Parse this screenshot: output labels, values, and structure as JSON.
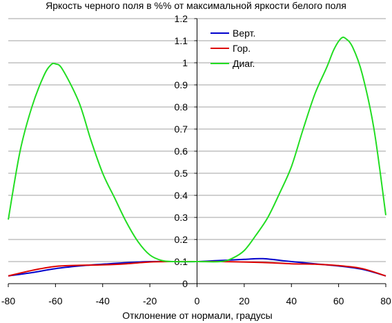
{
  "chart_data": {
    "type": "line",
    "title": "Яркость черного поля в %% от максимальной яркости белого поля",
    "xlabel": "Отклонение от нормали, градусы",
    "ylabel": "",
    "xlim": [
      -80,
      80
    ],
    "ylim": [
      0,
      1.2
    ],
    "x_ticks": [
      "-80",
      "-60",
      "-40",
      "-20",
      "0",
      "20",
      "40",
      "60",
      "80"
    ],
    "y_ticks": [
      "0",
      "0.1",
      "0.2",
      "0.3",
      "0.4",
      "0.5",
      "0.6",
      "0.7",
      "0.8",
      "0.9",
      "1",
      "1.1",
      "1.2"
    ],
    "grid": "horizontal",
    "legend_position": "top-center",
    "series": [
      {
        "name": "Верт.",
        "color": "#0000cc",
        "points": [
          [
            -80,
            0.035
          ],
          [
            -70,
            0.05
          ],
          [
            -60,
            0.068
          ],
          [
            -50,
            0.08
          ],
          [
            -40,
            0.088
          ],
          [
            -30,
            0.095
          ],
          [
            -20,
            0.1
          ],
          [
            -10,
            0.1
          ],
          [
            0,
            0.1
          ],
          [
            10,
            0.105
          ],
          [
            20,
            0.11
          ],
          [
            28,
            0.113
          ],
          [
            40,
            0.1
          ],
          [
            50,
            0.09
          ],
          [
            60,
            0.08
          ],
          [
            70,
            0.065
          ],
          [
            80,
            0.035
          ]
        ]
      },
      {
        "name": "Гор.",
        "color": "#dd0000",
        "points": [
          [
            -80,
            0.035
          ],
          [
            -70,
            0.06
          ],
          [
            -60,
            0.078
          ],
          [
            -50,
            0.083
          ],
          [
            -40,
            0.085
          ],
          [
            -30,
            0.09
          ],
          [
            -20,
            0.098
          ],
          [
            -10,
            0.1
          ],
          [
            0,
            0.1
          ],
          [
            10,
            0.1
          ],
          [
            20,
            0.098
          ],
          [
            30,
            0.095
          ],
          [
            40,
            0.09
          ],
          [
            50,
            0.088
          ],
          [
            60,
            0.082
          ],
          [
            70,
            0.068
          ],
          [
            80,
            0.035
          ]
        ]
      },
      {
        "name": "Диаг.",
        "color": "#22dd22",
        "points": [
          [
            -80,
            0.29
          ],
          [
            -75,
            0.6
          ],
          [
            -70,
            0.8
          ],
          [
            -65,
            0.94
          ],
          [
            -62,
            0.99
          ],
          [
            -60,
            0.995
          ],
          [
            -57,
            0.97
          ],
          [
            -50,
            0.82
          ],
          [
            -45,
            0.65
          ],
          [
            -40,
            0.5
          ],
          [
            -35,
            0.39
          ],
          [
            -30,
            0.28
          ],
          [
            -25,
            0.19
          ],
          [
            -20,
            0.13
          ],
          [
            -15,
            0.105
          ],
          [
            -10,
            0.1
          ],
          [
            0,
            0.1
          ],
          [
            10,
            0.1
          ],
          [
            15,
            0.115
          ],
          [
            20,
            0.15
          ],
          [
            25,
            0.22
          ],
          [
            30,
            0.3
          ],
          [
            35,
            0.41
          ],
          [
            40,
            0.53
          ],
          [
            45,
            0.7
          ],
          [
            50,
            0.86
          ],
          [
            55,
            0.98
          ],
          [
            58,
            1.06
          ],
          [
            61,
            1.11
          ],
          [
            63,
            1.11
          ],
          [
            66,
            1.07
          ],
          [
            70,
            0.95
          ],
          [
            75,
            0.7
          ],
          [
            80,
            0.31
          ]
        ]
      }
    ]
  }
}
